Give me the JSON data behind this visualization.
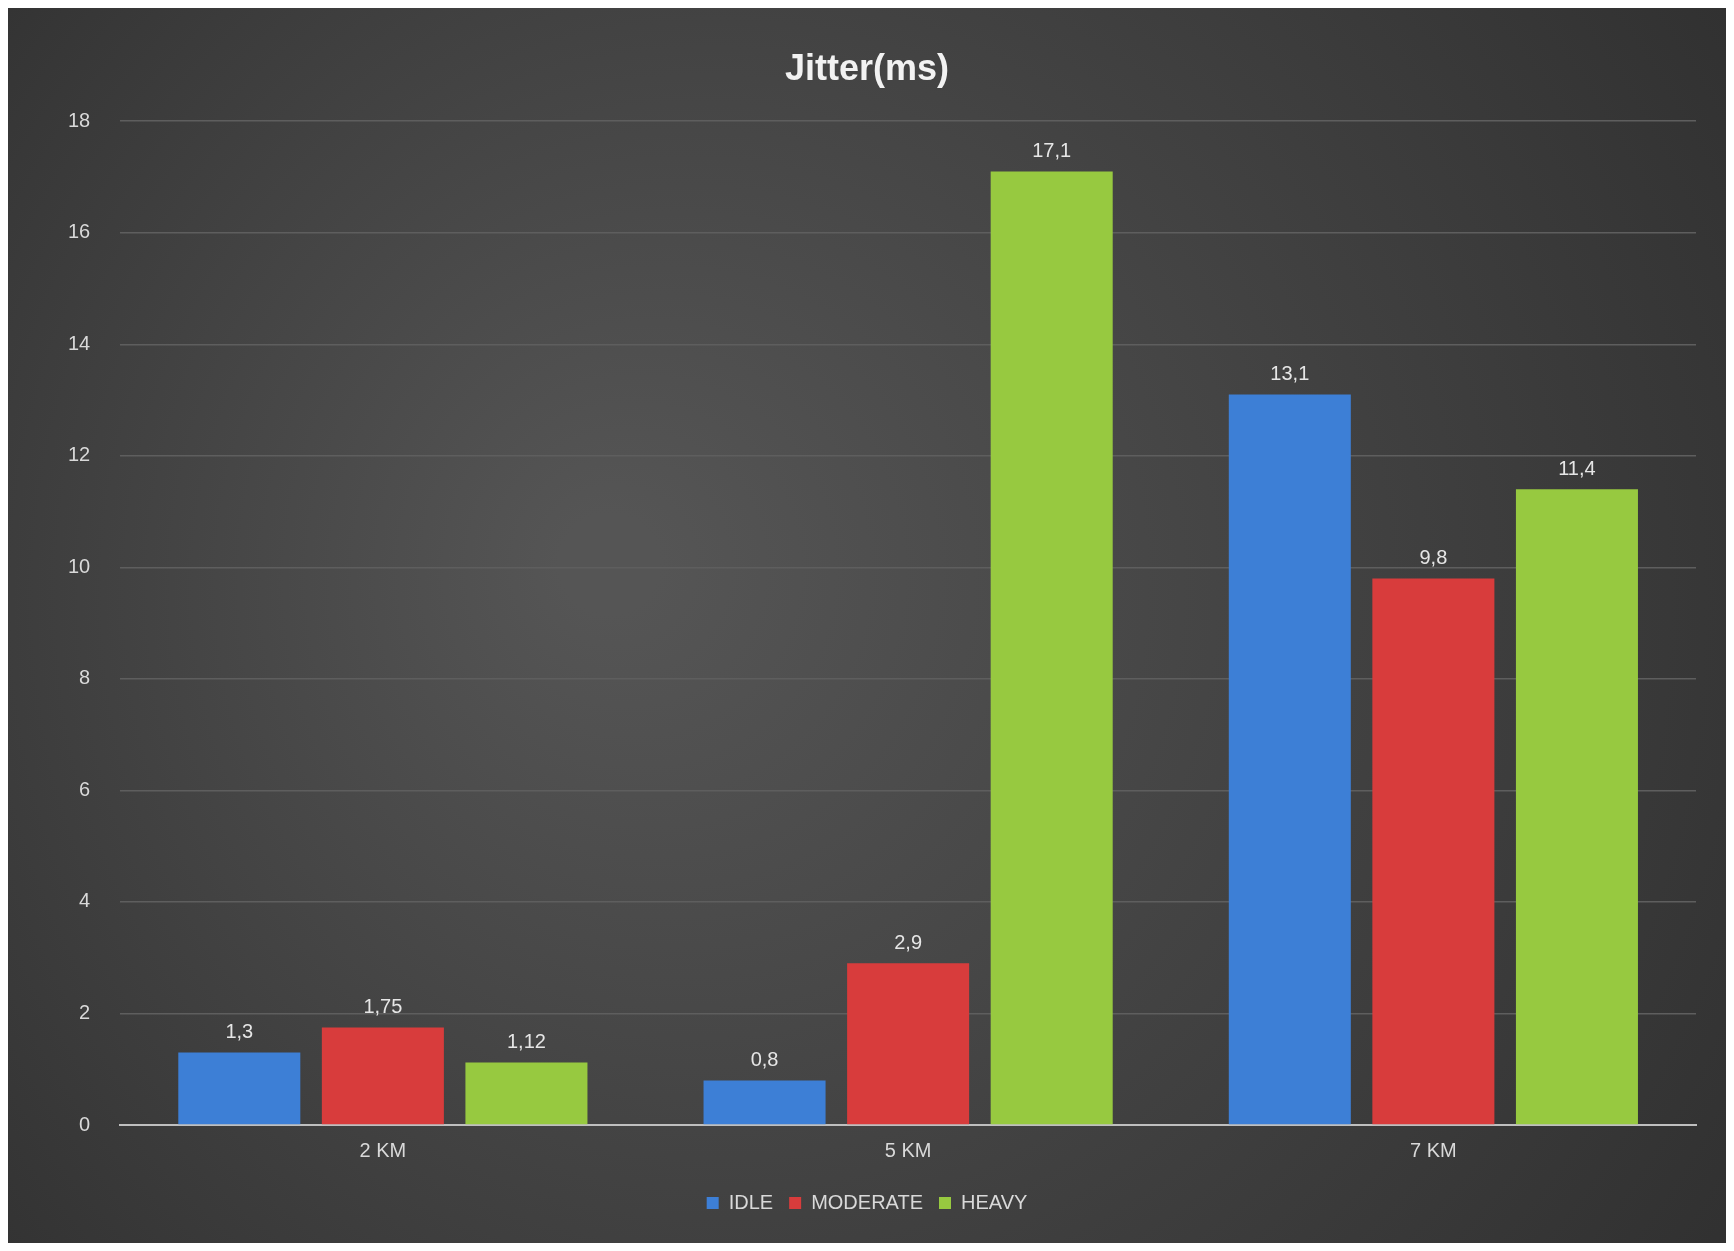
{
  "chart_data": {
    "type": "bar",
    "title": "Jitter(ms)",
    "categories": [
      "2 KM",
      "5 KM",
      "7 KM"
    ],
    "series": [
      {
        "name": "IDLE",
        "color": "#3d7fd6",
        "values": [
          1.3,
          0.8,
          13.1
        ],
        "value_labels": [
          "1,3",
          "0,8",
          "13,1"
        ]
      },
      {
        "name": "MODERATE",
        "color": "#d83c3c",
        "values": [
          1.75,
          2.9,
          9.8
        ],
        "value_labels": [
          "1,75",
          "2,9",
          "9,8"
        ]
      },
      {
        "name": "HEAVY",
        "color": "#97c940",
        "values": [
          1.12,
          17.1,
          11.4
        ],
        "value_labels": [
          "1,12",
          "17,1",
          "11,4"
        ]
      }
    ],
    "ylim": [
      0,
      18
    ],
    "yticks": [
      0,
      2,
      4,
      6,
      8,
      10,
      12,
      14,
      16,
      18
    ],
    "grid": "y",
    "legend": "bottom"
  }
}
